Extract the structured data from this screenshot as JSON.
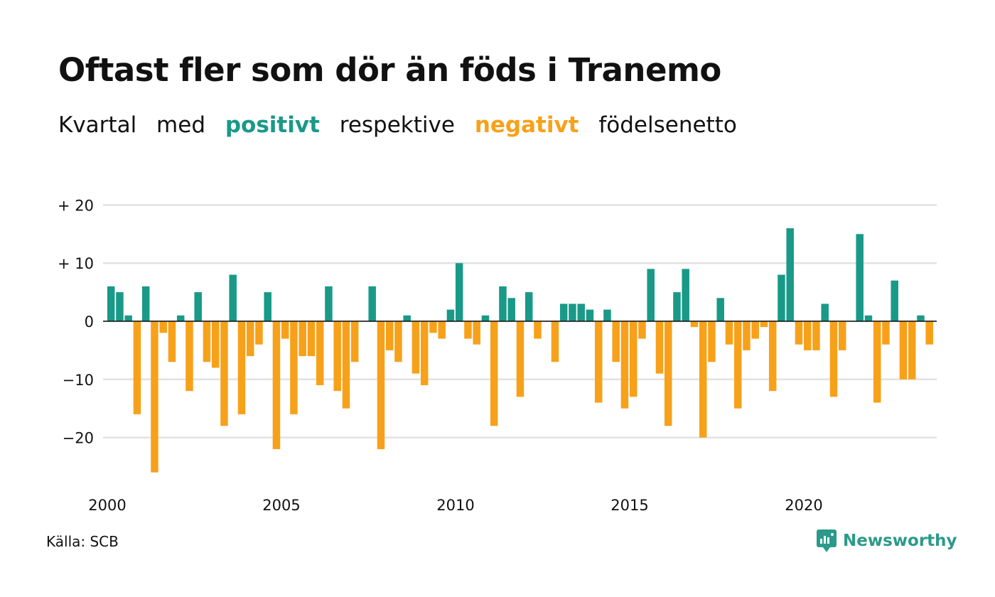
{
  "title": "Oftast fler som dör än föds i Tranemo",
  "subtitle": {
    "part1": "Kvartal",
    "part2": "med",
    "positive_word": "positivt",
    "part3": "respektive",
    "negative_word": "negativt",
    "part4": "födelsenetto"
  },
  "source": "Källa: SCB",
  "brand": "Newsworthy",
  "colors": {
    "positive": "#1a9988",
    "negative": "#f7a11a",
    "grid": "#e2e2e2",
    "brand": "#2b9a8a"
  },
  "chart_data": {
    "type": "bar",
    "title": "Oftast fler som dör än föds i Tranemo",
    "xlabel": "",
    "ylabel": "",
    "ylim": [
      -27,
      21
    ],
    "xlim": [
      2000,
      2024
    ],
    "y_ticks": [
      {
        "value": 20,
        "label": "+ 20"
      },
      {
        "value": 10,
        "label": "+ 10"
      },
      {
        "value": 0,
        "label": "0"
      },
      {
        "value": -10,
        "label": "−10"
      },
      {
        "value": -20,
        "label": "−20"
      }
    ],
    "x_ticks": [
      {
        "value": 2000,
        "label": "2000"
      },
      {
        "value": 2005,
        "label": "2005"
      },
      {
        "value": 2010,
        "label": "2010"
      },
      {
        "value": 2015,
        "label": "2015"
      },
      {
        "value": 2020,
        "label": "2020"
      }
    ],
    "grid": true,
    "first_period": "2000 Q1",
    "periods_per_year": 4,
    "values": [
      6,
      5,
      1,
      -16,
      6,
      -26,
      -2,
      -7,
      1,
      -12,
      5,
      -7,
      -8,
      -18,
      8,
      -16,
      -6,
      -4,
      5,
      -22,
      -3,
      -16,
      -6,
      -6,
      -11,
      6,
      -12,
      -15,
      -7,
      0,
      6,
      -22,
      -5,
      -7,
      1,
      -9,
      -11,
      -2,
      -3,
      2,
      10,
      -3,
      -4,
      1,
      -18,
      6,
      4,
      -13,
      5,
      -3,
      0,
      -7,
      3,
      3,
      3,
      2,
      -14,
      2,
      -7,
      -15,
      -13,
      -3,
      9,
      -9,
      -18,
      5,
      9,
      -1,
      -20,
      -7,
      4,
      -4,
      -15,
      -5,
      -3,
      -1,
      -12,
      8,
      16,
      -4,
      -5,
      -5,
      3,
      -13,
      -5,
      0,
      15,
      1,
      -14,
      -4,
      7,
      -10,
      -10,
      1,
      -4
    ]
  }
}
